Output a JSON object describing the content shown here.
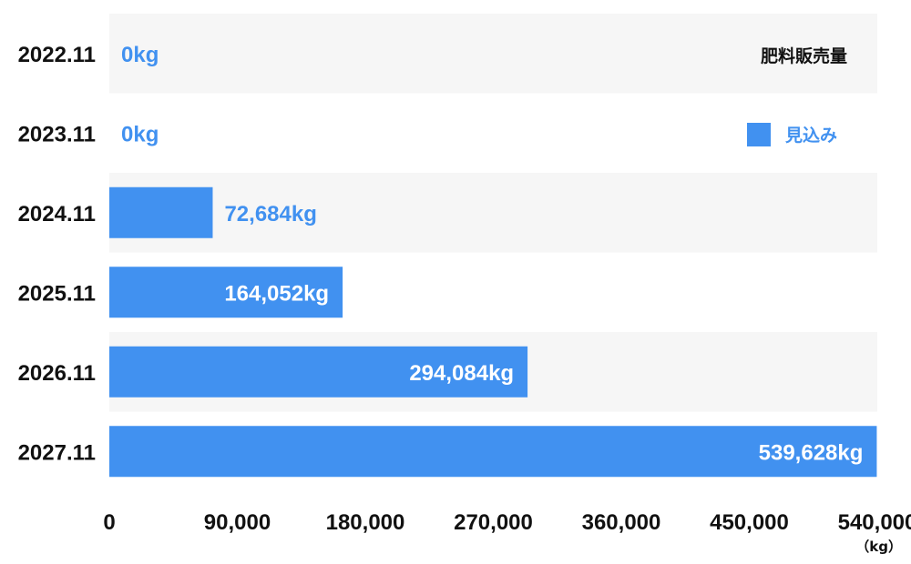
{
  "chart_data": {
    "type": "bar",
    "orientation": "horizontal",
    "title": "肥料販売量",
    "categories": [
      "2022.11",
      "2023.11",
      "2024.11",
      "2025.11",
      "2026.11",
      "2027.11"
    ],
    "values": [
      0,
      0,
      72684,
      164052,
      294084,
      539628
    ],
    "value_labels": [
      "0kg",
      "0kg",
      "72,684kg",
      "164,052kg",
      "294,084kg",
      "539,628kg"
    ],
    "series": [
      {
        "name": "見込み",
        "values": [
          0,
          0,
          72684,
          164052,
          294084,
          539628
        ]
      }
    ],
    "xlim": [
      0,
      540000
    ],
    "xticks": [
      0,
      90000,
      180000,
      270000,
      360000,
      450000,
      540000
    ],
    "xtick_labels": [
      "0",
      "90,000",
      "180,000",
      "270,000",
      "360,000",
      "450,000",
      "540,000"
    ],
    "xlabel": "",
    "ylabel": "",
    "unit_label": "（kg）",
    "legend_position": "top-right",
    "colors": {
      "bar": "#4191f0",
      "label_outside": "#4191f0",
      "label_inside": "#ffffff",
      "band_alt": "#f6f6f6",
      "band": "#ffffff",
      "text": "#111111"
    }
  }
}
